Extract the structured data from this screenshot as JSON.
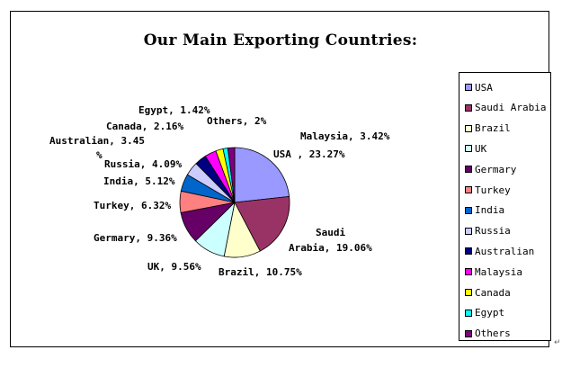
{
  "chart_data": {
    "type": "pie",
    "title": "Our Main Exporting Countries:",
    "slices": [
      {
        "name": "USA",
        "value": 23.27,
        "label": "USA , 23.27%",
        "color": "#9999ff"
      },
      {
        "name": "Saudi Arabia",
        "value": 19.06,
        "label_lines": [
          "Saudi",
          "Arabia, 19.06%"
        ],
        "color": "#993366"
      },
      {
        "name": "Brazil",
        "value": 10.75,
        "label": "Brazil, 10.75%",
        "color": "#ffffcc"
      },
      {
        "name": "UK",
        "value": 9.56,
        "label": "UK, 9.56%",
        "color": "#ccffff"
      },
      {
        "name": "Germary",
        "value": 9.36,
        "label": "Germary, 9.36%",
        "color": "#660066"
      },
      {
        "name": "Turkey",
        "value": 6.32,
        "label": "Turkey, 6.32%",
        "color": "#ff8080"
      },
      {
        "name": "India",
        "value": 5.12,
        "label": "India, 5.12%",
        "color": "#0066cc"
      },
      {
        "name": "Russia",
        "value": 4.09,
        "label": "Russia, 4.09%",
        "color": "#ccccff"
      },
      {
        "name": "Australian",
        "value": 3.45,
        "label_lines": [
          "Australian, 3.45",
          "%"
        ],
        "color": "#000080"
      },
      {
        "name": "Malaysia",
        "value": 3.42,
        "label": "Malaysia, 3.42%",
        "color": "#ff00ff"
      },
      {
        "name": "Canada",
        "value": 2.16,
        "label": "Canada, 2.16%",
        "color": "#ffff00"
      },
      {
        "name": "Egypt",
        "value": 1.42,
        "label": "Egypt, 1.42%",
        "color": "#00ffff"
      },
      {
        "name": "Others",
        "value": 2,
        "label": "Others, 2%",
        "color": "#800080"
      }
    ],
    "legend": {
      "position": "right",
      "entries": [
        "USA",
        "Saudi Arabia",
        "Brazil",
        "UK",
        "Germary",
        "Turkey",
        "India",
        "Russia",
        "Australian",
        "Malaysia",
        "Canada",
        "Egypt",
        "Others"
      ]
    }
  }
}
